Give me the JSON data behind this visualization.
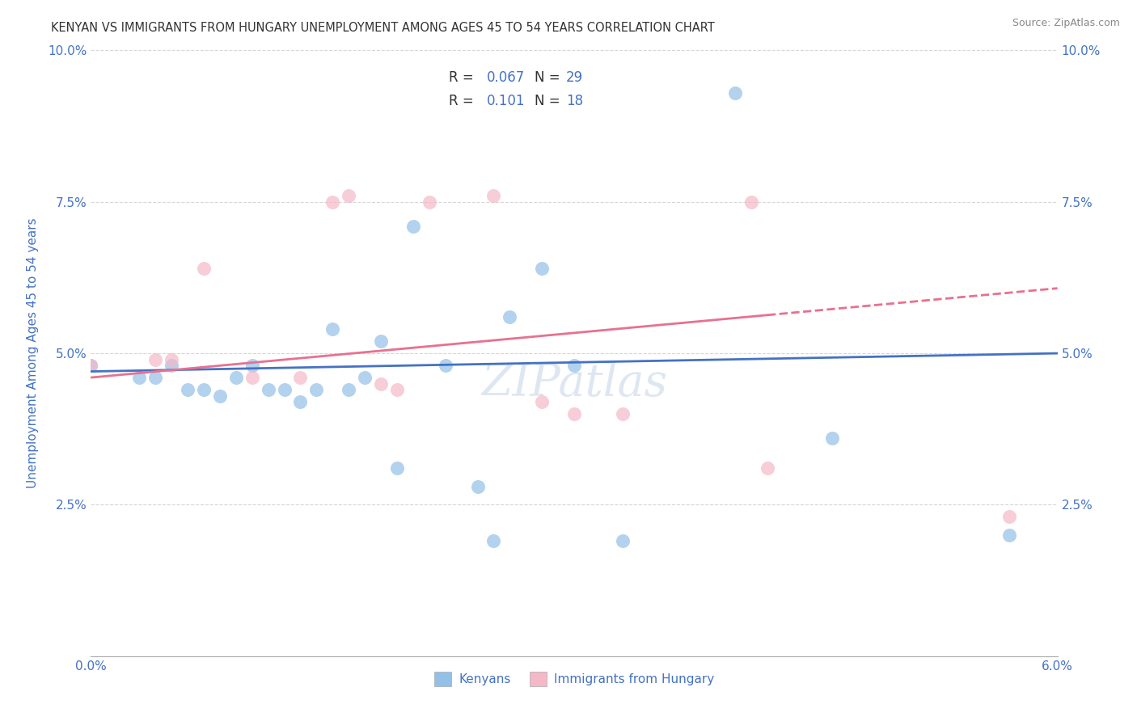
{
  "title": "KENYAN VS IMMIGRANTS FROM HUNGARY UNEMPLOYMENT AMONG AGES 45 TO 54 YEARS CORRELATION CHART",
  "source": "Source: ZipAtlas.com",
  "ylabel": "Unemployment Among Ages 45 to 54 years",
  "xlabel_kenyans": "Kenyans",
  "xlabel_hungary": "Immigrants from Hungary",
  "xlim": [
    0.0,
    0.06
  ],
  "ylim": [
    0.0,
    0.1
  ],
  "xticks": [
    0.0,
    0.01,
    0.02,
    0.03,
    0.04,
    0.05,
    0.06
  ],
  "xticklabels": [
    "0.0%",
    "",
    "",
    "",
    "",
    "",
    "6.0%"
  ],
  "yticks": [
    0.0,
    0.025,
    0.05,
    0.075,
    0.1
  ],
  "yticklabels": [
    "",
    "2.5%",
    "5.0%",
    "7.5%",
    "10.0%"
  ],
  "blue_color": "#92c0e8",
  "pink_color": "#f5b8c8",
  "blue_line_color": "#4472c4",
  "pink_line_color": "#e87090",
  "tick_label_color": "#4472c4",
  "axis_label_color": "#4472c4",
  "watermark": "ZIPatlas",
  "kenyans_x": [
    0.0,
    0.003,
    0.004,
    0.005,
    0.006,
    0.007,
    0.008,
    0.009,
    0.01,
    0.011,
    0.012,
    0.013,
    0.014,
    0.015,
    0.016,
    0.017,
    0.018,
    0.019,
    0.02,
    0.022,
    0.024,
    0.025,
    0.026,
    0.028,
    0.03,
    0.033,
    0.04,
    0.046,
    0.057
  ],
  "kenyans_y": [
    0.048,
    0.046,
    0.046,
    0.048,
    0.044,
    0.044,
    0.043,
    0.046,
    0.048,
    0.044,
    0.044,
    0.042,
    0.044,
    0.054,
    0.044,
    0.046,
    0.052,
    0.031,
    0.071,
    0.048,
    0.028,
    0.019,
    0.056,
    0.064,
    0.048,
    0.019,
    0.093,
    0.036,
    0.02
  ],
  "hungary_x": [
    0.0,
    0.004,
    0.005,
    0.007,
    0.01,
    0.013,
    0.015,
    0.016,
    0.018,
    0.019,
    0.021,
    0.025,
    0.028,
    0.03,
    0.033,
    0.041,
    0.042,
    0.057
  ],
  "hungary_y": [
    0.048,
    0.049,
    0.049,
    0.064,
    0.046,
    0.046,
    0.075,
    0.076,
    0.045,
    0.044,
    0.075,
    0.076,
    0.042,
    0.04,
    0.04,
    0.075,
    0.031,
    0.023
  ],
  "blue_trendline_x0": 0.0,
  "blue_trendline_y0": 0.047,
  "blue_trendline_x1": 0.06,
  "blue_trendline_y1": 0.05,
  "pink_trendline_x0": 0.0,
  "pink_trendline_y0": 0.046,
  "pink_trendline_x1": 0.057,
  "pink_trendline_y1": 0.06
}
